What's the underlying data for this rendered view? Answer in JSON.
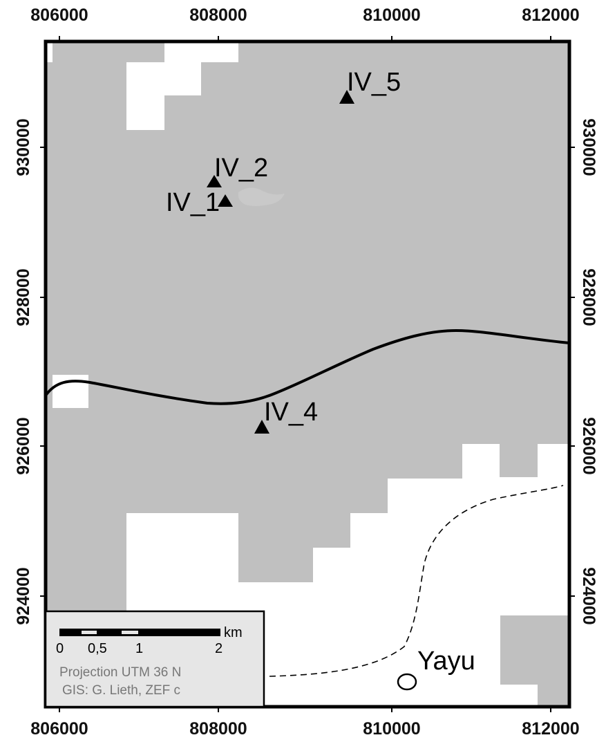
{
  "map": {
    "x_ticks": [
      "806000",
      "808000",
      "810000",
      "812000"
    ],
    "y_ticks": [
      "930000",
      "928000",
      "926000",
      "924000"
    ],
    "sites": [
      {
        "id": "iv5",
        "label": "IV_5"
      },
      {
        "id": "iv2",
        "label": "IV_2"
      },
      {
        "id": "iv1",
        "label": "IV_1"
      },
      {
        "id": "iv4",
        "label": "IV_4"
      }
    ],
    "town": {
      "label": "Yayu"
    },
    "colors": {
      "forest": "#c0c0c0",
      "open": "#ffffff",
      "frame": "#000000",
      "legend_bg": "#e6e6e6",
      "legend_text": "#777777"
    }
  },
  "legend": {
    "scale_unit": "km",
    "scale_labels": [
      "0",
      "0,5",
      "1",
      "2"
    ],
    "projection": "Projection UTM 36 N",
    "credit": "GIS: G. Lieth, ZEF c"
  }
}
